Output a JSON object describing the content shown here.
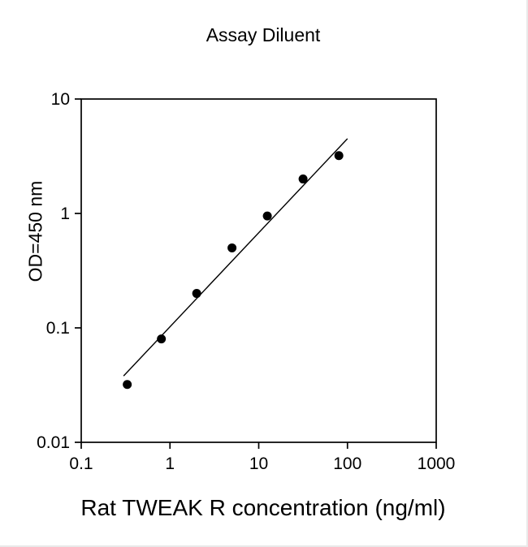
{
  "chart_data": {
    "type": "scatter",
    "title": "Assay Diluent",
    "xlabel": "Rat TWEAK R concentration (ng/ml)",
    "ylabel": "OD=450 nm",
    "x_scale": "log",
    "y_scale": "log",
    "xlim": [
      0.1,
      1000
    ],
    "ylim": [
      0.01,
      10
    ],
    "grid": false,
    "legend": "none",
    "x_ticks": [
      0.1,
      1,
      10,
      100,
      1000
    ],
    "x_tick_labels": [
      "0.1",
      "1",
      "10",
      "100",
      "1000"
    ],
    "y_ticks": [
      10,
      1,
      0.1,
      0.01
    ],
    "y_tick_labels": [
      "10",
      "1",
      "0.1",
      "0.01"
    ],
    "points": {
      "x": [
        0.33,
        0.8,
        2.0,
        5.0,
        12.5,
        31.6,
        80
      ],
      "y": [
        0.032,
        0.08,
        0.2,
        0.5,
        0.95,
        2.0,
        3.2
      ]
    },
    "fit_line": {
      "x1": 0.3,
      "y1": 0.038,
      "x2": 100,
      "y2": 4.5
    },
    "marker": {
      "shape": "circle",
      "color": "#000000",
      "radius": 5.5
    },
    "line_color": "#000000",
    "axis_color": "#000000"
  },
  "layout_note": ""
}
